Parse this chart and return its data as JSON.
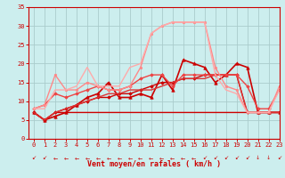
{
  "bg_color": "#cceeee",
  "grid_color": "#aacccc",
  "xlabel": "Vent moyen/en rafales ( km/h )",
  "xlim": [
    -0.5,
    23
  ],
  "ylim": [
    0,
    35
  ],
  "yticks": [
    0,
    5,
    10,
    15,
    20,
    25,
    30,
    35
  ],
  "xticks": [
    0,
    1,
    2,
    3,
    4,
    5,
    6,
    7,
    8,
    9,
    10,
    11,
    12,
    13,
    14,
    15,
    16,
    17,
    18,
    19,
    20,
    21,
    22,
    23
  ],
  "series": [
    {
      "x": [
        0,
        1,
        2,
        3,
        4,
        5,
        6,
        7,
        8,
        9,
        10,
        11,
        12,
        13,
        14,
        15,
        16,
        17,
        18,
        19,
        20,
        21,
        22,
        23
      ],
      "y": [
        7,
        5,
        7,
        7,
        7,
        7,
        7,
        7,
        7,
        7,
        7,
        7,
        7,
        7,
        7,
        7,
        7,
        7,
        7,
        7,
        7,
        7,
        7,
        7
      ],
      "color": "#cc0000",
      "lw": 1.0,
      "marker": null
    },
    {
      "x": [
        0,
        1,
        2,
        3,
        4,
        5,
        6,
        7,
        8,
        9,
        10,
        11,
        12,
        13,
        14,
        15,
        16,
        17,
        18,
        19,
        20,
        21,
        22,
        23
      ],
      "y": [
        7,
        5,
        7,
        8,
        9,
        10,
        11,
        11,
        12,
        12,
        13,
        14,
        15,
        15,
        16,
        16,
        17,
        17,
        17,
        17,
        7,
        7,
        7,
        7
      ],
      "color": "#cc0000",
      "lw": 1.0,
      "marker": "D",
      "ms": 1.8
    },
    {
      "x": [
        0,
        1,
        2,
        3,
        4,
        5,
        6,
        7,
        8,
        9,
        10,
        11,
        12,
        13,
        14,
        15,
        16,
        17,
        18,
        19,
        20,
        21,
        22,
        23
      ],
      "y": [
        7,
        5,
        6,
        7,
        9,
        11,
        12,
        15,
        11,
        11,
        12,
        11,
        17,
        13,
        21,
        20,
        19,
        15,
        17,
        20,
        19,
        7,
        7,
        7
      ],
      "color": "#cc0000",
      "lw": 1.2,
      "marker": "^",
      "ms": 2.5
    },
    {
      "x": [
        0,
        1,
        2,
        3,
        4,
        5,
        6,
        7,
        8,
        9,
        10,
        11,
        12,
        13,
        14,
        15,
        16,
        17,
        18,
        19,
        20,
        21,
        22,
        23
      ],
      "y": [
        7,
        5,
        7,
        8,
        9,
        10,
        11,
        12,
        12,
        13,
        13,
        13,
        14,
        15,
        16,
        16,
        16,
        17,
        17,
        17,
        7,
        7,
        7,
        7
      ],
      "color": "#dd3333",
      "lw": 1.0,
      "marker": null
    },
    {
      "x": [
        0,
        1,
        2,
        3,
        4,
        5,
        6,
        7,
        8,
        9,
        10,
        11,
        12,
        13,
        14,
        15,
        16,
        17,
        18,
        19,
        20,
        21,
        22,
        23
      ],
      "y": [
        8,
        9,
        12,
        11,
        12,
        13,
        14,
        13,
        13,
        14,
        16,
        17,
        17,
        14,
        17,
        17,
        17,
        17,
        17,
        17,
        14,
        8,
        8,
        13
      ],
      "color": "#ee4444",
      "lw": 1.0,
      "marker": "D",
      "ms": 1.8
    },
    {
      "x": [
        0,
        1,
        2,
        3,
        4,
        5,
        6,
        7,
        8,
        9,
        10,
        11,
        12,
        13,
        14,
        15,
        16,
        17,
        18,
        19,
        20,
        21,
        22,
        23
      ],
      "y": [
        8,
        9,
        17,
        13,
        13,
        15,
        14,
        13,
        13,
        14,
        19,
        28,
        30,
        31,
        31,
        31,
        31,
        19,
        14,
        13,
        7,
        7,
        7,
        14
      ],
      "color": "#ff8888",
      "lw": 1.0,
      "marker": "o",
      "ms": 1.8
    },
    {
      "x": [
        0,
        1,
        2,
        3,
        4,
        5,
        6,
        7,
        8,
        9,
        10,
        11,
        12,
        13,
        14,
        15,
        16,
        17,
        18,
        19,
        20,
        21,
        22,
        23
      ],
      "y": [
        8,
        8,
        13,
        13,
        14,
        19,
        14,
        14,
        14,
        19,
        20,
        28,
        30,
        31,
        31,
        31,
        31,
        17,
        13,
        12,
        7,
        7,
        7,
        13
      ],
      "color": "#ffaaaa",
      "lw": 1.0,
      "marker": null
    }
  ],
  "arrow_color": "#cc0000",
  "label_color": "#cc0000",
  "tick_color": "#cc0000",
  "spine_color": "#cc0000"
}
